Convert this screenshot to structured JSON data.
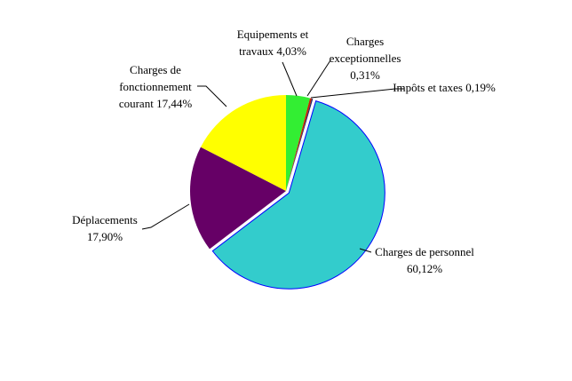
{
  "chart_data": {
    "type": "pie",
    "categories": [
      "Equipements et travaux",
      "Charges exceptionnelles",
      "Impôts et taxes",
      "Charges de personnel",
      "Déplacements",
      "Charges de fonctionnement courant"
    ],
    "values": [
      4.03,
      0.31,
      0.19,
      60.12,
      17.9,
      17.44
    ],
    "value_labels": [
      "4,03%",
      "0,31%",
      "0,19%",
      "60,12%",
      "17,90%",
      "17,44%"
    ],
    "colors": [
      "#33ee33",
      "#cc2200",
      "#222266",
      "#33cccc",
      "#660066",
      "#ffff00"
    ]
  }
}
